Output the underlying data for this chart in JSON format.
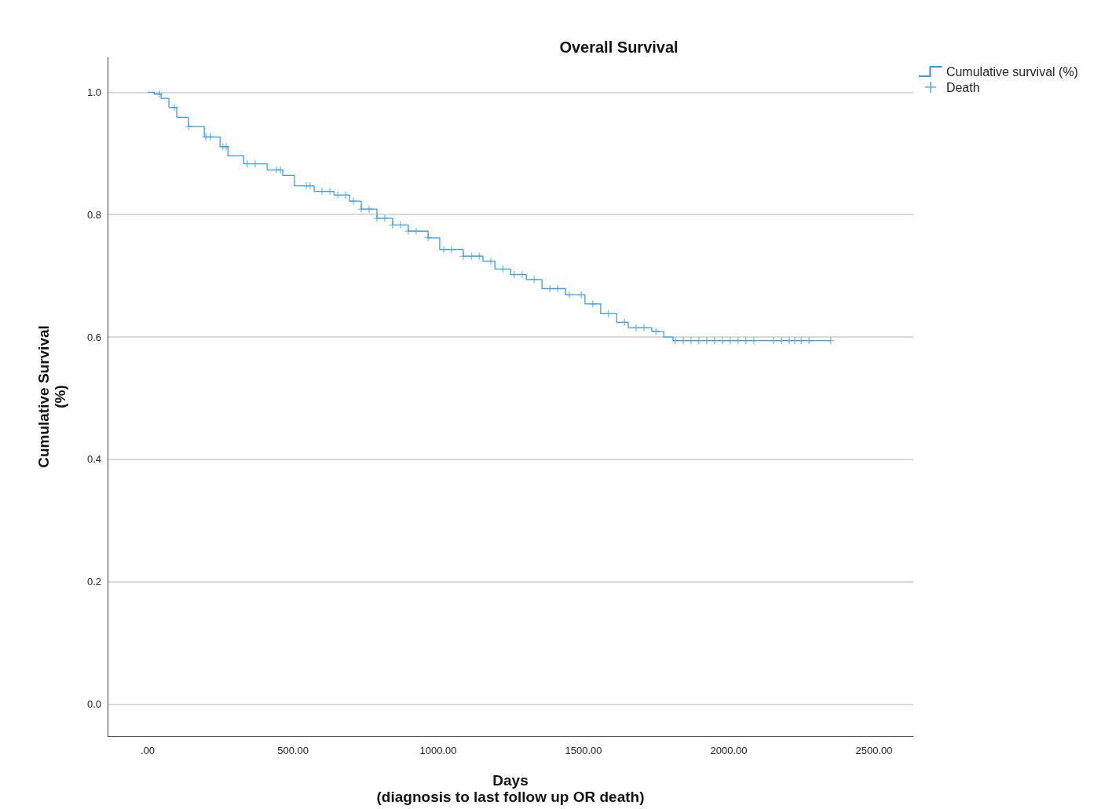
{
  "chart_data": {
    "type": "step",
    "title": "Overall Survival",
    "xlabel": "Days\n(diagnosis to last follow up OR death)",
    "ylabel": "Cumulative Survival\n(%)",
    "xlim": [
      -138,
      2635
    ],
    "ylim": [
      -0.052,
      1.057
    ],
    "xticks": [
      {
        "value": 0,
        "label": ".00"
      },
      {
        "value": 500,
        "label": "500.00"
      },
      {
        "value": 1000,
        "label": "1000.00"
      },
      {
        "value": 1500,
        "label": "1500.00"
      },
      {
        "value": 2000,
        "label": "2000.00"
      },
      {
        "value": 2500,
        "label": "2500.00"
      }
    ],
    "yticks": [
      {
        "value": 0,
        "label": "0.0"
      },
      {
        "value": 0.2,
        "label": "0.2"
      },
      {
        "value": 0.4,
        "label": "0.4"
      },
      {
        "value": 0.6,
        "label": "0.6"
      },
      {
        "value": 0.8,
        "label": "0.8"
      },
      {
        "value": 1,
        "label": "1.0"
      }
    ],
    "grid": "y",
    "legend": "top right",
    "series": [
      {
        "name": "Cumulative survival (%)",
        "color": "#3a9ee4",
        "marker": "none",
        "x": [
          0,
          22,
          46,
          73,
          100,
          140,
          195,
          249,
          276,
          330,
          411,
          465,
          505,
          573,
          641,
          695,
          735,
          789,
          843,
          897,
          965,
          1005,
          1086,
          1154,
          1195,
          1249,
          1303,
          1357,
          1438,
          1505,
          1559,
          1614,
          1654,
          1735,
          1776,
          1808,
          2351
        ],
        "values": [
          1.0,
          0.997,
          0.99,
          0.975,
          0.959,
          0.944,
          0.927,
          0.911,
          0.896,
          0.883,
          0.873,
          0.864,
          0.847,
          0.838,
          0.832,
          0.822,
          0.809,
          0.794,
          0.783,
          0.773,
          0.762,
          0.743,
          0.732,
          0.724,
          0.711,
          0.702,
          0.694,
          0.679,
          0.669,
          0.654,
          0.638,
          0.624,
          0.615,
          0.609,
          0.6,
          0.594,
          0.594
        ]
      },
      {
        "name": "Death",
        "type": "scatter",
        "color": "#3a9ee4",
        "marker": "cross",
        "x": [
          41,
          92,
          141,
          200,
          216,
          259,
          270,
          343,
          370,
          443,
          457,
          546,
          559,
          600,
          627,
          654,
          681,
          708,
          735,
          762,
          789,
          816,
          843,
          870,
          897,
          924,
          965,
          1019,
          1046,
          1086,
          1114,
          1141,
          1181,
          1222,
          1262,
          1289,
          1330,
          1384,
          1411,
          1451,
          1492,
          1532,
          1586,
          1641,
          1681,
          1708,
          1749,
          1816,
          1843,
          1870,
          1897,
          1924,
          1951,
          1978,
          2005,
          2032,
          2059,
          2086,
          2154,
          2181,
          2208,
          2227,
          2249,
          2276,
          2351
        ],
        "values": [
          0.997,
          0.975,
          0.944,
          0.927,
          0.927,
          0.911,
          0.911,
          0.883,
          0.883,
          0.873,
          0.873,
          0.847,
          0.847,
          0.838,
          0.838,
          0.832,
          0.832,
          0.822,
          0.809,
          0.809,
          0.794,
          0.794,
          0.783,
          0.783,
          0.773,
          0.773,
          0.762,
          0.743,
          0.743,
          0.732,
          0.732,
          0.732,
          0.724,
          0.711,
          0.702,
          0.702,
          0.694,
          0.679,
          0.679,
          0.669,
          0.669,
          0.654,
          0.638,
          0.624,
          0.615,
          0.615,
          0.609,
          0.594,
          0.594,
          0.594,
          0.594,
          0.594,
          0.594,
          0.594,
          0.594,
          0.594,
          0.594,
          0.594,
          0.594,
          0.594,
          0.594,
          0.594,
          0.594,
          0.594,
          0.594
        ]
      }
    ]
  }
}
